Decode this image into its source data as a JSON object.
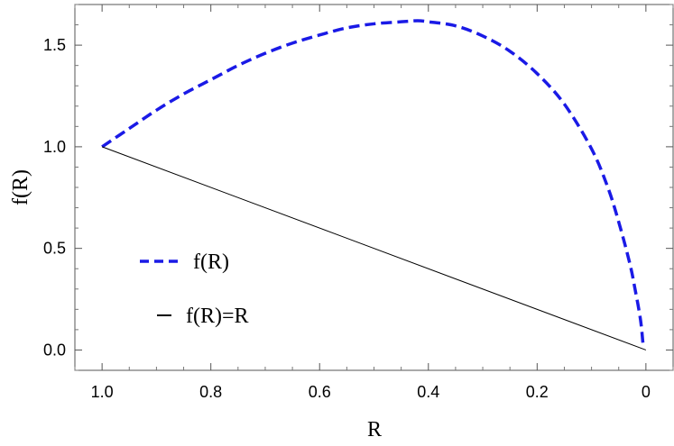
{
  "chart_data": {
    "type": "line",
    "title": "",
    "xlabel": "R",
    "ylabel": "f(R)",
    "xlim": [
      1.05,
      -0.05
    ],
    "ylim": [
      -0.1,
      1.7
    ],
    "x_reversed": true,
    "grid": false,
    "legend_position": "lower-left",
    "x_ticks": [
      1.0,
      0.8,
      0.6,
      0.4,
      0.2,
      0
    ],
    "x_tick_labels": [
      "1.0",
      "0.8",
      "0.6",
      "0.4",
      "0.2",
      "0"
    ],
    "y_ticks": [
      0.0,
      0.5,
      1.0,
      1.5
    ],
    "y_tick_labels": [
      "0.0",
      "0.5",
      "1.0",
      "1.5"
    ],
    "series": [
      {
        "name": "f(R)",
        "style": "dashed",
        "color": "#1a1ae6",
        "x": [
          1.0,
          0.95,
          0.9,
          0.85,
          0.8,
          0.75,
          0.7,
          0.65,
          0.6,
          0.55,
          0.5,
          0.45,
          0.42,
          0.4,
          0.35,
          0.3,
          0.25,
          0.2,
          0.15,
          0.1,
          0.07,
          0.05,
          0.03,
          0.02,
          0.01,
          0.005
        ],
        "y": [
          1.0,
          1.09,
          1.18,
          1.26,
          1.33,
          1.4,
          1.46,
          1.51,
          1.55,
          1.585,
          1.605,
          1.615,
          1.62,
          1.615,
          1.595,
          1.545,
          1.47,
          1.36,
          1.21,
          0.99,
          0.8,
          0.63,
          0.43,
          0.3,
          0.15,
          0.02
        ]
      },
      {
        "name": "f(R)=R",
        "style": "solid",
        "color": "#000000",
        "x": [
          1.0,
          0.0
        ],
        "y": [
          1.0,
          0.0
        ]
      }
    ]
  }
}
